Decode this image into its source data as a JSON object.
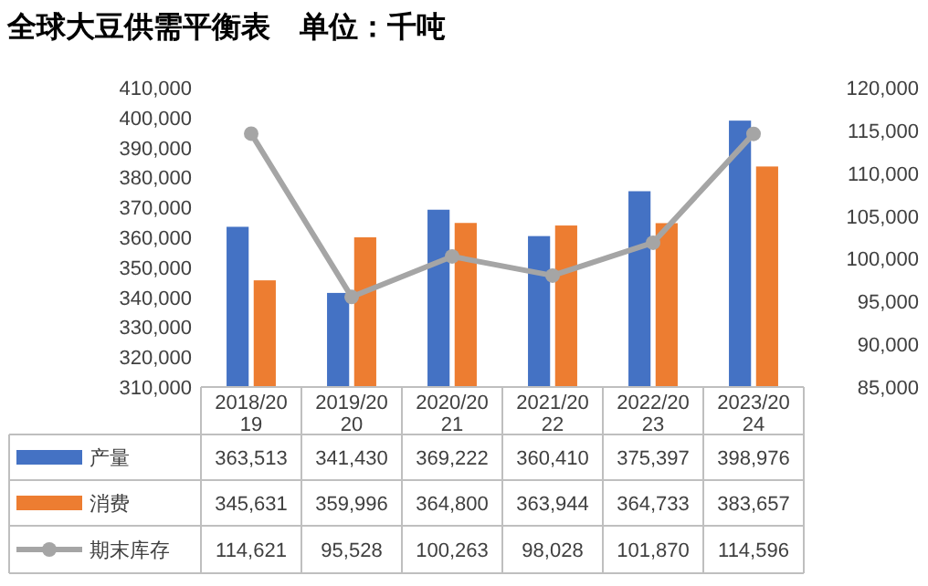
{
  "chart_data": {
    "type": "bar",
    "title": "全球大豆供需平衡表　单位：千吨",
    "categories": [
      "2018/2019",
      "2019/2020",
      "2020/2021",
      "2021/2022",
      "2022/2023",
      "2023/2024"
    ],
    "series": [
      {
        "name": "产量",
        "color": "#4472c4",
        "values": [
          363513,
          341430,
          369222,
          360410,
          375397,
          398976
        ],
        "value_labels": [
          "363,513",
          "341,430",
          "369,222",
          "360,410",
          "375,397",
          "398,976"
        ]
      },
      {
        "name": "消费",
        "color": "#ed7d31",
        "values": [
          345631,
          359996,
          364800,
          363944,
          364733,
          383657
        ],
        "value_labels": [
          "345,631",
          "359,996",
          "364,800",
          "363,944",
          "364,733",
          "383,657"
        ]
      },
      {
        "name": "期末库存",
        "type": "line",
        "axis": "y2",
        "color": "#a5a5a5",
        "marker": "circle",
        "values": [
          114621,
          95528,
          100263,
          98028,
          101870,
          114596
        ],
        "value_labels": [
          "114,621",
          "95,528",
          "100,263",
          "98,028",
          "101,870",
          "114,596"
        ]
      }
    ],
    "ylim": [
      310000,
      410000
    ],
    "yticks": [
      {
        "value": 310000,
        "label": "310,000"
      },
      {
        "value": 320000,
        "label": "320,000"
      },
      {
        "value": 330000,
        "label": "330,000"
      },
      {
        "value": 340000,
        "label": "340,000"
      },
      {
        "value": 350000,
        "label": "350,000"
      },
      {
        "value": 360000,
        "label": "360,000"
      },
      {
        "value": 370000,
        "label": "370,000"
      },
      {
        "value": 380000,
        "label": "380,000"
      },
      {
        "value": 390000,
        "label": "390,000"
      },
      {
        "value": 400000,
        "label": "400,000"
      },
      {
        "value": 410000,
        "label": "410,000"
      }
    ],
    "y2lim": [
      85000,
      120000
    ],
    "y2ticks": [
      {
        "value": 85000,
        "label": "85,000"
      },
      {
        "value": 90000,
        "label": "90,000"
      },
      {
        "value": 95000,
        "label": "95,000"
      },
      {
        "value": 100000,
        "label": "100,000"
      },
      {
        "value": 105000,
        "label": "105,000"
      },
      {
        "value": 110000,
        "label": "110,000"
      },
      {
        "value": 115000,
        "label": "115,000"
      },
      {
        "value": 120000,
        "label": "120,000"
      }
    ],
    "grid": false,
    "legend": "bottom"
  }
}
